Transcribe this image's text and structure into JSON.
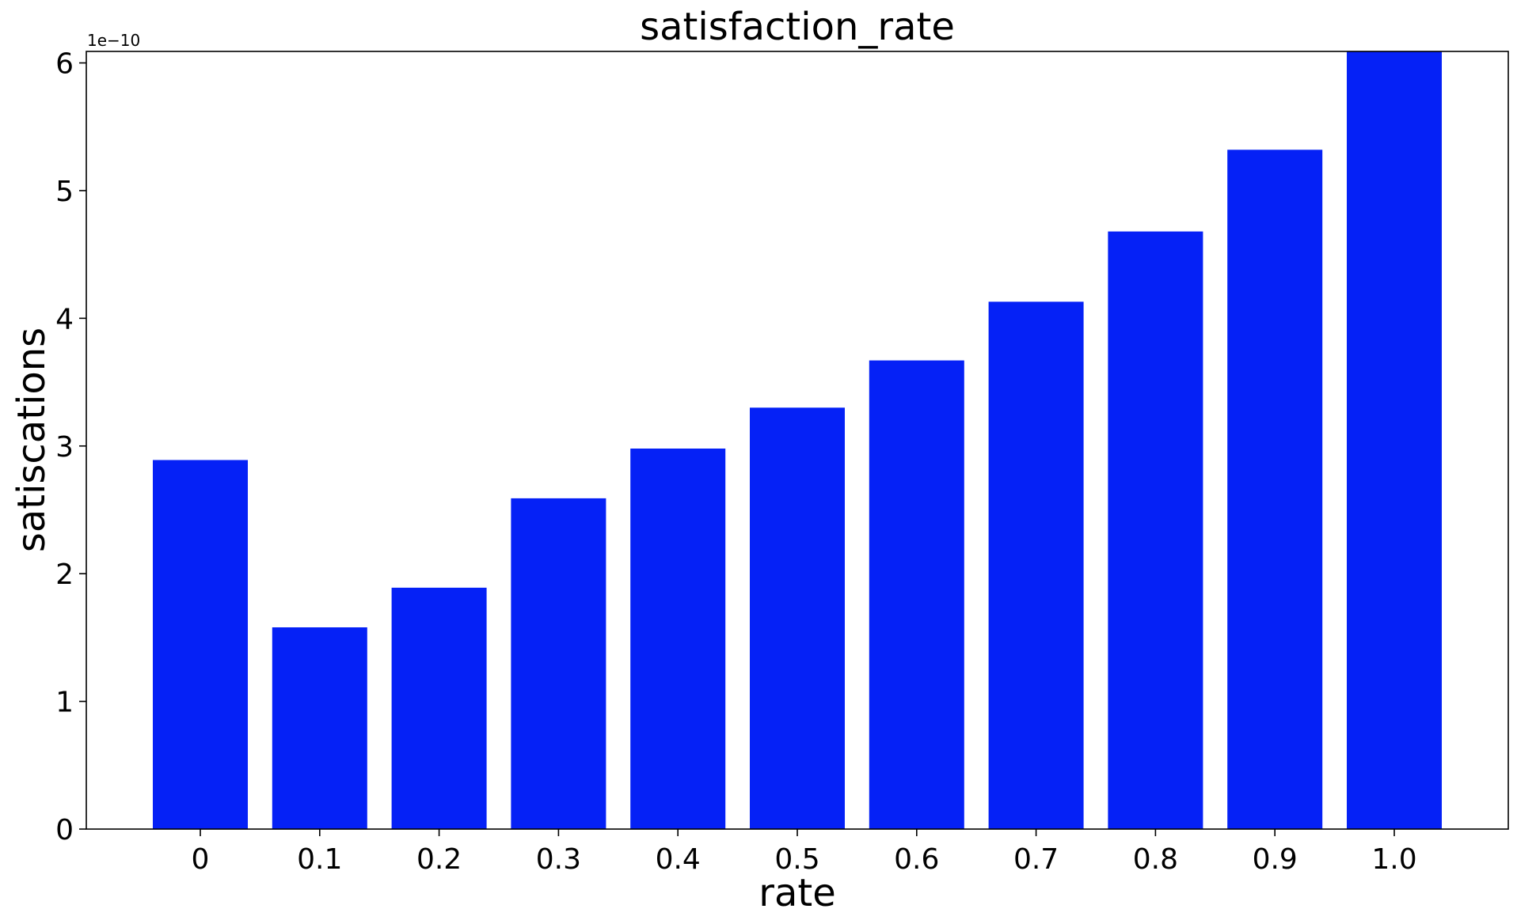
{
  "chart_data": {
    "type": "bar",
    "title": "satisfaction_rate",
    "xlabel": "rate",
    "ylabel": "satiscations",
    "y_offset_label": "1e−10",
    "categories": [
      "0",
      "0.1",
      "0.2",
      "0.3",
      "0.4",
      "0.5",
      "0.6",
      "0.7",
      "0.8",
      "0.9",
      "1.0"
    ],
    "values": [
      2.89e-10,
      1.58e-10,
      1.89e-10,
      2.59e-10,
      2.98e-10,
      3.3e-10,
      3.67e-10,
      4.13e-10,
      4.68e-10,
      5.32e-10,
      6.09e-10
    ],
    "ylim": [
      0,
      6.09e-10
    ],
    "yticks": [
      0,
      1e-10,
      2e-10,
      3e-10,
      4e-10,
      5e-10,
      6e-10
    ],
    "ytick_labels": [
      "0",
      "1",
      "2",
      "3",
      "4",
      "5",
      "6"
    ],
    "bar_color": "#0521f6",
    "grid": false,
    "legend": "none"
  }
}
